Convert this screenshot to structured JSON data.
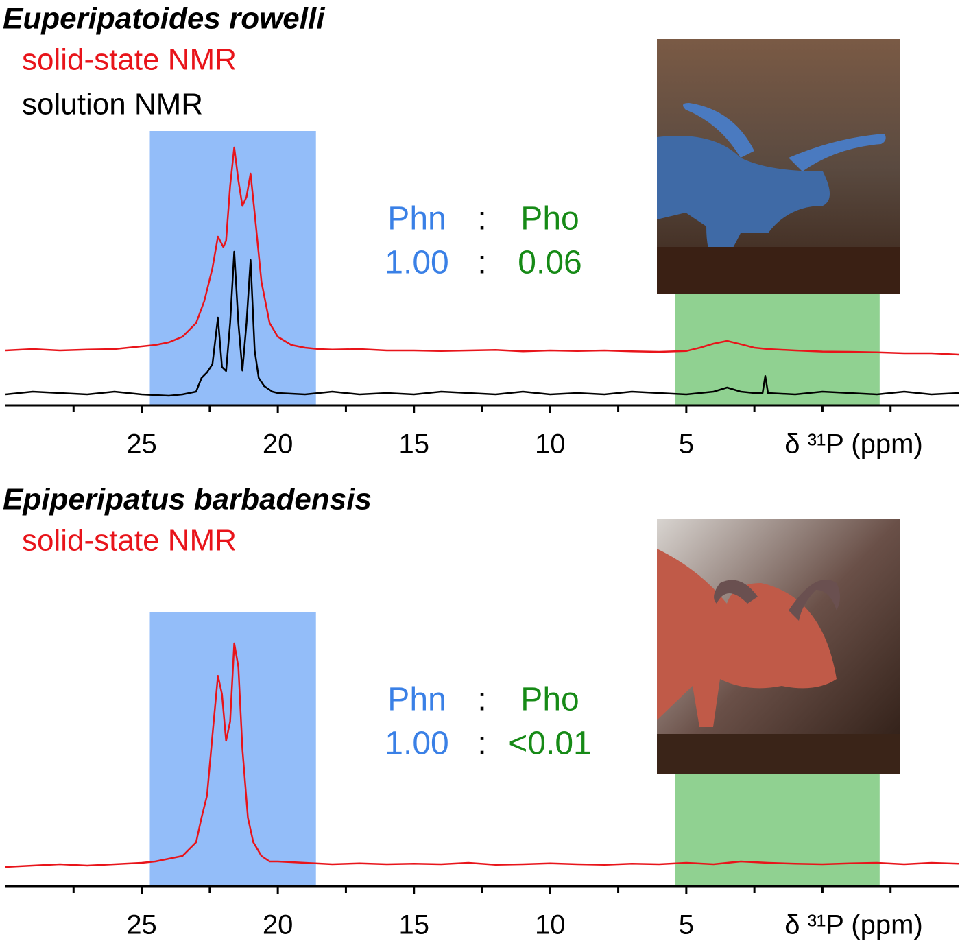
{
  "chart_data": [
    {
      "type": "line",
      "title": "Euperipatoides rowelli",
      "x_label": "δ ³¹P (ppm)",
      "xlim": [
        30,
        -5
      ],
      "xticks": [
        25,
        20,
        15,
        10,
        5
      ],
      "minor_xticks": [
        27.5,
        22.5,
        17.5,
        12.5,
        7.5,
        2.5,
        0,
        -2.5
      ],
      "ylim": [
        0,
        100
      ],
      "regions": [
        {
          "from": 24.7,
          "to": 18.6,
          "color": "#93bdf9"
        },
        {
          "from": 5.4,
          "to": -2.1,
          "color": "#90d191"
        }
      ],
      "ratio": {
        "labels": [
          "Phn",
          ":",
          "Pho"
        ],
        "values": [
          "1.00",
          ":",
          "0.06"
        ],
        "colors": [
          "#3a80e6",
          "#000000",
          "#168a16"
        ]
      },
      "series": [
        {
          "name": "solid-state NMR",
          "color": "#e8141a",
          "x": [
            30,
            29,
            28,
            27,
            26,
            25.5,
            25,
            24.5,
            24,
            23.5,
            23,
            22.7,
            22.4,
            22.2,
            22.0,
            21.9,
            21.75,
            21.6,
            21.45,
            21.3,
            21.15,
            21.0,
            20.85,
            20.6,
            20.3,
            20,
            19.5,
            19,
            18.5,
            18,
            17,
            16,
            15,
            14,
            13,
            12,
            11,
            10,
            9,
            8,
            7,
            6,
            5,
            4.5,
            4,
            3.5,
            3,
            2.5,
            2,
            1,
            0,
            -1,
            -2,
            -3,
            -4,
            -5
          ],
          "values": [
            20,
            20.5,
            20,
            20.3,
            20.5,
            21,
            21.5,
            22,
            23,
            25,
            30,
            38,
            50,
            61.5,
            57.7,
            60,
            80,
            94,
            82,
            72.7,
            76,
            84.5,
            70,
            45,
            30,
            25,
            22,
            21,
            20.5,
            20.3,
            20.5,
            20,
            20,
            19.8,
            20,
            20.2,
            19.7,
            20,
            19.8,
            20,
            19.7,
            19.5,
            19.8,
            21,
            22.5,
            23.5,
            22.3,
            21,
            20.5,
            20,
            19.6,
            19.5,
            19.3,
            19,
            19,
            18.5
          ]
        },
        {
          "name": "solution NMR",
          "color": "#000000",
          "x": [
            30,
            29,
            28,
            27,
            26,
            25,
            24,
            23.5,
            23,
            22.8,
            22.6,
            22.4,
            22.2,
            22.05,
            21.9,
            21.75,
            21.6,
            21.45,
            21.3,
            21.15,
            21.0,
            20.85,
            20.7,
            20.5,
            20.2,
            20,
            19,
            18,
            17,
            16,
            15,
            14,
            13,
            12,
            11,
            10,
            9,
            8,
            7,
            6,
            5,
            4,
            3.5,
            3,
            2.5,
            2.2,
            2.1,
            2,
            1,
            0,
            -1,
            -2,
            -3,
            -4,
            -5
          ],
          "values": [
            4,
            5,
            4.5,
            4,
            5,
            4,
            3.5,
            4,
            5,
            10,
            12,
            15,
            32,
            14,
            12.5,
            30,
            56,
            30,
            12.7,
            30,
            53,
            20,
            10,
            7,
            5,
            4.5,
            4,
            5,
            4,
            4.5,
            4,
            5,
            4.5,
            4,
            5,
            4,
            4.5,
            4,
            5,
            4.5,
            4,
            5,
            6.5,
            5,
            4.5,
            4.5,
            10.7,
            4.5,
            4,
            5,
            4.5,
            4,
            5,
            4,
            4.5
          ]
        }
      ]
    },
    {
      "type": "line",
      "title": "Epiperipatus barbadensis",
      "x_label": "δ ³¹P (ppm)",
      "xlim": [
        30,
        -5
      ],
      "xticks": [
        25,
        20,
        15,
        10,
        5
      ],
      "minor_xticks": [
        27.5,
        22.5,
        17.5,
        12.5,
        7.5,
        2.5,
        0,
        -2.5
      ],
      "ylim": [
        0,
        100
      ],
      "regions": [
        {
          "from": 24.7,
          "to": 18.6,
          "color": "#93bdf9"
        },
        {
          "from": 5.4,
          "to": -2.1,
          "color": "#90d191"
        }
      ],
      "ratio": {
        "labels": [
          "Phn",
          ":",
          "Pho"
        ],
        "values": [
          "1.00",
          ":",
          "<0.01"
        ],
        "colors": [
          "#3a80e6",
          "#000000",
          "#168a16"
        ]
      },
      "series": [
        {
          "name": "solid-state NMR",
          "color": "#e8141a",
          "x": [
            30,
            29,
            28,
            27,
            26,
            25,
            24.5,
            24,
            23.5,
            23,
            22.8,
            22.6,
            22.4,
            22.2,
            22.05,
            21.9,
            21.75,
            21.6,
            21.45,
            21.3,
            21.1,
            20.9,
            20.6,
            20.3,
            20,
            19,
            18,
            17,
            16,
            15,
            14,
            13,
            12,
            11,
            10,
            9,
            8,
            7,
            6,
            5,
            4,
            3,
            2,
            1,
            0,
            -1,
            -2,
            -3,
            -4,
            -5
          ],
          "values": [
            7,
            7.5,
            8,
            7.5,
            8,
            8.5,
            9,
            10,
            11,
            16,
            25,
            33,
            55,
            76.7,
            70,
            53,
            60,
            88.5,
            80,
            50,
            25,
            16,
            11,
            9,
            9,
            8.5,
            8,
            8.3,
            8,
            8.2,
            8,
            8.5,
            7.8,
            8,
            8.3,
            8,
            7.8,
            8.2,
            8,
            8.5,
            8,
            9,
            8.5,
            8.2,
            8,
            8.3,
            8.5,
            8,
            8.5,
            8.2
          ]
        }
      ]
    }
  ]
}
